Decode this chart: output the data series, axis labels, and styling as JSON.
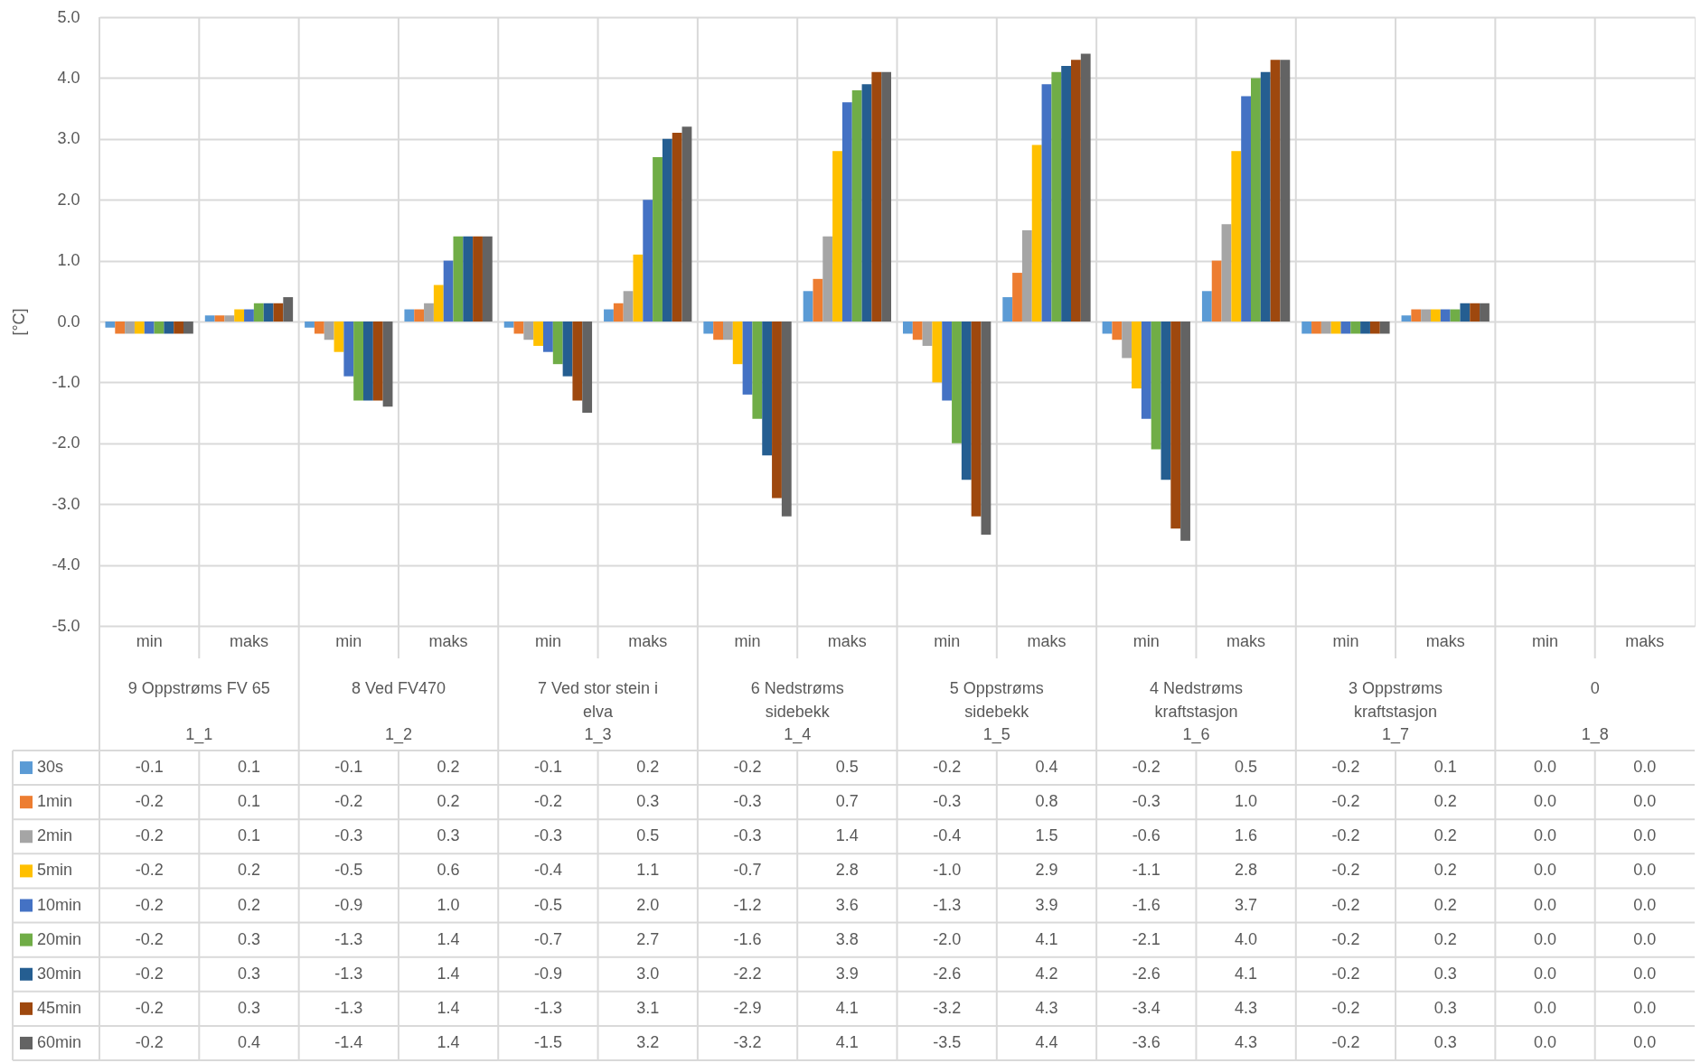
{
  "chart_data": {
    "type": "bar",
    "ylabel": "[°C]",
    "categories": [
      "min",
      "maks",
      "min",
      "maks",
      "min",
      "maks",
      "min",
      "maks",
      "min",
      "maks",
      "min",
      "maks",
      "min",
      "maks",
      "min",
      "maks"
    ],
    "annotations": [
      "9 Oppstrøms FV 65",
      "8 Ved FV470",
      "7 Ved stor stein i elva",
      "6 Nedstrøms sidebekk",
      "5 Oppstrøms sidebekk",
      "4 Nedstrøms kraftstasjon",
      "3 Oppstrøms kraftstasjon",
      "0",
      "1_1",
      "1_2",
      "1_3",
      "1_4",
      "1_5",
      "1_6",
      "1_7",
      "1_8"
    ],
    "series": [
      {
        "name": "30s",
        "color": "#5b9bd5",
        "values": [
          -0.1,
          0.1,
          -0.1,
          0.2,
          -0.1,
          0.2,
          -0.2,
          0.5,
          -0.2,
          0.4,
          -0.2,
          0.5,
          -0.2,
          0.1,
          0.0,
          0.0
        ],
        "value_labels": [
          "-0.1",
          "0.1",
          "-0.1",
          "0.2",
          "-0.1",
          "0.2",
          "-0.2",
          "0.5",
          "-0.2",
          "0.4",
          "-0.2",
          "0.5",
          "-0.2",
          "0.1",
          "0.0",
          "0.0"
        ]
      },
      {
        "name": "1min",
        "color": "#ed7d31",
        "values": [
          -0.2,
          0.1,
          -0.2,
          0.2,
          -0.2,
          0.3,
          -0.3,
          0.7,
          -0.3,
          0.8,
          -0.3,
          1.0,
          -0.2,
          0.2,
          0.0,
          0.0
        ],
        "value_labels": [
          "-0.2",
          "0.1",
          "-0.2",
          "0.2",
          "-0.2",
          "0.3",
          "-0.3",
          "0.7",
          "-0.3",
          "0.8",
          "-0.3",
          "1.0",
          "-0.2",
          "0.2",
          "0.0",
          "0.0"
        ]
      },
      {
        "name": "2min",
        "color": "#a5a5a5",
        "values": [
          -0.2,
          0.1,
          -0.3,
          0.3,
          -0.3,
          0.5,
          -0.3,
          1.4,
          -0.4,
          1.5,
          -0.6,
          1.6,
          -0.2,
          0.2,
          0.0,
          0.0
        ],
        "value_labels": [
          "-0.2",
          "0.1",
          "-0.3",
          "0.3",
          "-0.3",
          "0.5",
          "-0.3",
          "1.4",
          "-0.4",
          "1.5",
          "-0.6",
          "1.6",
          "-0.2",
          "0.2",
          "0.0",
          "0.0"
        ]
      },
      {
        "name": "5min",
        "color": "#ffc000",
        "values": [
          -0.2,
          0.2,
          -0.5,
          0.6,
          -0.4,
          1.1,
          -0.7,
          2.8,
          -1.0,
          2.9,
          -1.1,
          2.8,
          -0.2,
          0.2,
          0.0,
          0.0
        ],
        "value_labels": [
          "-0.2",
          "0.2",
          "-0.5",
          "0.6",
          "-0.4",
          "1.1",
          "-0.7",
          "2.8",
          "-1.0",
          "2.9",
          "-1.1",
          "2.8",
          "-0.2",
          "0.2",
          "0.0",
          "0.0"
        ]
      },
      {
        "name": "10min",
        "color": "#4472c4",
        "values": [
          -0.2,
          0.2,
          -0.9,
          1.0,
          -0.5,
          2.0,
          -1.2,
          3.6,
          -1.3,
          3.9,
          -1.6,
          3.7,
          -0.2,
          0.2,
          0.0,
          0.0
        ],
        "value_labels": [
          "-0.2",
          "0.2",
          "-0.9",
          "1.0",
          "-0.5",
          "2.0",
          "-1.2",
          "3.6",
          "-1.3",
          "3.9",
          "-1.6",
          "3.7",
          "-0.2",
          "0.2",
          "0.0",
          "0.0"
        ]
      },
      {
        "name": "20min",
        "color": "#70ad47",
        "values": [
          -0.2,
          0.3,
          -1.3,
          1.4,
          -0.7,
          2.7,
          -1.6,
          3.8,
          -2.0,
          4.1,
          -2.1,
          4.0,
          -0.2,
          0.2,
          0.0,
          0.0
        ],
        "value_labels": [
          "-0.2",
          "0.3",
          "-1.3",
          "1.4",
          "-0.7",
          "2.7",
          "-1.6",
          "3.8",
          "-2.0",
          "4.1",
          "-2.1",
          "4.0",
          "-0.2",
          "0.2",
          "0.0",
          "0.0"
        ]
      },
      {
        "name": "30min",
        "color": "#255e91",
        "values": [
          -0.2,
          0.3,
          -1.3,
          1.4,
          -0.9,
          3.0,
          -2.2,
          3.9,
          -2.6,
          4.2,
          -2.6,
          4.1,
          -0.2,
          0.3,
          0.0,
          0.0
        ],
        "value_labels": [
          "-0.2",
          "0.3",
          "-1.3",
          "1.4",
          "-0.9",
          "3.0",
          "-2.2",
          "3.9",
          "-2.6",
          "4.2",
          "-2.6",
          "4.1",
          "-0.2",
          "0.3",
          "0.0",
          "0.0"
        ]
      },
      {
        "name": "45min",
        "color": "#9e480e",
        "values": [
          -0.2,
          0.3,
          -1.3,
          1.4,
          -1.3,
          3.1,
          -2.9,
          4.1,
          -3.2,
          4.3,
          -3.4,
          4.3,
          -0.2,
          0.3,
          0.0,
          0.0
        ],
        "value_labels": [
          "-0.2",
          "0.3",
          "-1.3",
          "1.4",
          "-1.3",
          "3.1",
          "-2.9",
          "4.1",
          "-3.2",
          "4.3",
          "-3.4",
          "4.3",
          "-0.2",
          "0.3",
          "0.0",
          "0.0"
        ]
      },
      {
        "name": "60min",
        "color": "#636363",
        "values": [
          -0.2,
          0.4,
          -1.4,
          1.4,
          -1.5,
          3.2,
          -3.2,
          4.1,
          -3.5,
          4.4,
          -3.6,
          4.3,
          -0.2,
          0.3,
          0.0,
          0.0
        ],
        "value_labels": [
          "-0.2",
          "0.4",
          "-1.4",
          "1.4",
          "-1.5",
          "3.2",
          "-3.2",
          "4.1",
          "-3.5",
          "4.4",
          "-3.6",
          "4.3",
          "-0.2",
          "0.3",
          "0.0",
          "0.0"
        ]
      }
    ],
    "ylim": [
      -5,
      5
    ],
    "yticks": [
      {
        "value": -5,
        "label": "-5.0"
      },
      {
        "value": -4,
        "label": "-4.0"
      },
      {
        "value": -3,
        "label": "-3.0"
      },
      {
        "value": -2,
        "label": "-2.0"
      },
      {
        "value": -1,
        "label": "-1.0"
      },
      {
        "value": 0,
        "label": "0.0"
      },
      {
        "value": 1,
        "label": "1.0"
      },
      {
        "value": 2,
        "label": "2.0"
      },
      {
        "value": 3,
        "label": "3.0"
      },
      {
        "value": 4,
        "label": "4.0"
      },
      {
        "value": 5,
        "label": "5.0"
      }
    ],
    "grid": true,
    "legend": "bottom left"
  }
}
